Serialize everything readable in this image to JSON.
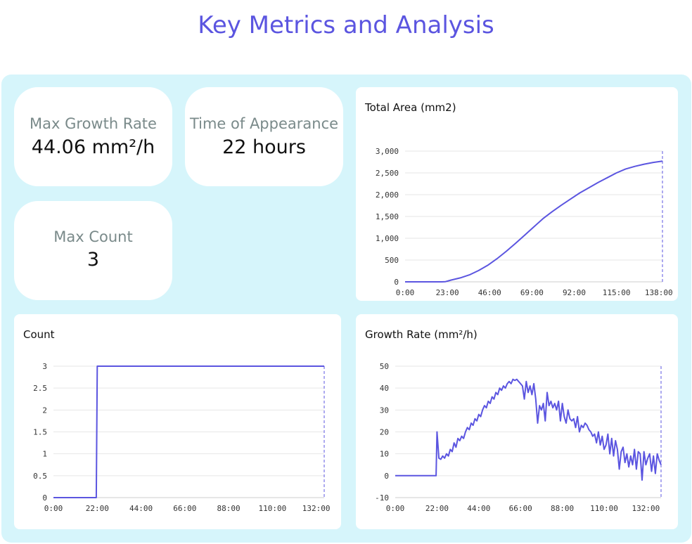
{
  "title": "Key Metrics and Analysis",
  "stats": {
    "max_growth": {
      "label": "Max Growth Rate",
      "value": "44.06 mm²/h"
    },
    "appearance": {
      "label": "Time of Appearance",
      "value": "22 hours"
    },
    "max_count": {
      "label": "Max Count",
      "value": "3"
    }
  },
  "colors": {
    "accent": "#5b55e0",
    "panel": "#d6f5fb",
    "grid": "#e6e6e6"
  },
  "chart_data": [
    {
      "id": "area",
      "type": "line",
      "title": "Total Area (mm2)",
      "xlabel": "",
      "ylabel": "",
      "xlim": [
        0,
        140
      ],
      "ylim": [
        0,
        3000
      ],
      "x_ticks": [
        0,
        23,
        46,
        69,
        92,
        115,
        138
      ],
      "x_tick_labels": [
        "0:00",
        "23:00",
        "46:00",
        "69:00",
        "92:00",
        "115:00",
        "138:00"
      ],
      "y_ticks": [
        0,
        500,
        1000,
        1500,
        2000,
        2500,
        3000
      ],
      "y_tick_labels": [
        "0",
        "500",
        "1,000",
        "1,500",
        "2,000",
        "2,500",
        "3,000"
      ],
      "grid": true,
      "cursor_x": 140,
      "series": [
        {
          "x": [
            0,
            10,
            20,
            22,
            25,
            30,
            35,
            40,
            45,
            50,
            55,
            60,
            65,
            70,
            75,
            80,
            85,
            90,
            95,
            100,
            105,
            110,
            115,
            120,
            125,
            130,
            135,
            140
          ],
          "values": [
            0,
            0,
            0,
            5,
            40,
            90,
            160,
            260,
            380,
            530,
            700,
            880,
            1070,
            1260,
            1450,
            1610,
            1760,
            1900,
            2040,
            2160,
            2280,
            2390,
            2500,
            2590,
            2650,
            2700,
            2740,
            2770
          ]
        }
      ]
    },
    {
      "id": "count",
      "type": "line",
      "title": "Count",
      "xlabel": "",
      "ylabel": "",
      "xlim": [
        0,
        136
      ],
      "ylim": [
        0,
        3
      ],
      "x_ticks": [
        0,
        22,
        44,
        66,
        88,
        110,
        132
      ],
      "x_tick_labels": [
        "0:00",
        "22:00",
        "44:00",
        "66:00",
        "88:00",
        "110:00",
        "132:00"
      ],
      "y_ticks": [
        0,
        0.5,
        1,
        1.5,
        2,
        2.5,
        3
      ],
      "y_tick_labels": [
        "0",
        "0.5",
        "1",
        "1.5",
        "2",
        "2.5",
        "3"
      ],
      "grid": true,
      "cursor_x": 136,
      "series": [
        {
          "x": [
            0,
            21.5,
            22,
            136
          ],
          "values": [
            0,
            0,
            3,
            3
          ]
        }
      ]
    },
    {
      "id": "growth",
      "type": "line",
      "title": "Growth Rate (mm²/h)",
      "xlabel": "",
      "ylabel": "",
      "xlim": [
        0,
        140
      ],
      "ylim": [
        -10,
        50
      ],
      "x_ticks": [
        0,
        22,
        44,
        66,
        88,
        110,
        132
      ],
      "x_tick_labels": [
        "0:00",
        "22:00",
        "44:00",
        "66:00",
        "88:00",
        "110:00",
        "132:00"
      ],
      "y_ticks": [
        -10,
        0,
        10,
        20,
        30,
        40,
        50
      ],
      "y_tick_labels": [
        "-10",
        "0",
        "10",
        "20",
        "30",
        "40",
        "50"
      ],
      "grid": true,
      "cursor_x": 140,
      "series": [
        {
          "x": [
            0,
            21,
            21.5,
            22,
            23,
            24,
            25,
            26,
            27,
            28,
            29,
            30,
            31,
            32,
            33,
            34,
            35,
            36,
            37,
            38,
            39,
            40,
            41,
            42,
            43,
            44,
            45,
            46,
            47,
            48,
            49,
            50,
            51,
            52,
            53,
            54,
            55,
            56,
            57,
            58,
            59,
            60,
            61,
            62,
            63,
            64,
            65,
            66,
            67,
            68,
            69,
            70,
            71,
            72,
            73,
            74,
            75,
            76,
            77,
            78,
            79,
            80,
            81,
            82,
            83,
            84,
            85,
            86,
            87,
            88,
            89,
            90,
            91,
            92,
            93,
            94,
            95,
            96,
            97,
            98,
            99,
            100,
            101,
            102,
            103,
            104,
            105,
            106,
            107,
            108,
            109,
            110,
            111,
            112,
            113,
            114,
            115,
            116,
            117,
            118,
            119,
            120,
            121,
            122,
            123,
            124,
            125,
            126,
            127,
            128,
            129,
            130,
            131,
            132,
            133,
            134,
            135,
            136,
            137,
            138,
            139,
            140
          ],
          "values": [
            0,
            0,
            0,
            20,
            8,
            7.5,
            9,
            8,
            10,
            9,
            12,
            11,
            15,
            13,
            17,
            16,
            18,
            17,
            20,
            22,
            21,
            24,
            23,
            26,
            25,
            28,
            27,
            30,
            32,
            31,
            34,
            33,
            36,
            35,
            38,
            37,
            40,
            39,
            41,
            40,
            42,
            43,
            42,
            44,
            43.5,
            44,
            43,
            42,
            41,
            35,
            43,
            38,
            41,
            37,
            42,
            35,
            24,
            32,
            30,
            33,
            25,
            38,
            32,
            34,
            31,
            33,
            30,
            34,
            25,
            33,
            27,
            24,
            30,
            26,
            25,
            26,
            22,
            27,
            20,
            23,
            22,
            24,
            23,
            21,
            20,
            18,
            19,
            15,
            20,
            14,
            18,
            12,
            14,
            19,
            10,
            17,
            9,
            16,
            12,
            3,
            11,
            13,
            6,
            10,
            4,
            9,
            5,
            12,
            3,
            11,
            10,
            -2,
            11,
            5,
            8,
            10,
            2,
            9,
            1,
            10,
            7,
            5
          ]
        }
      ]
    }
  ]
}
